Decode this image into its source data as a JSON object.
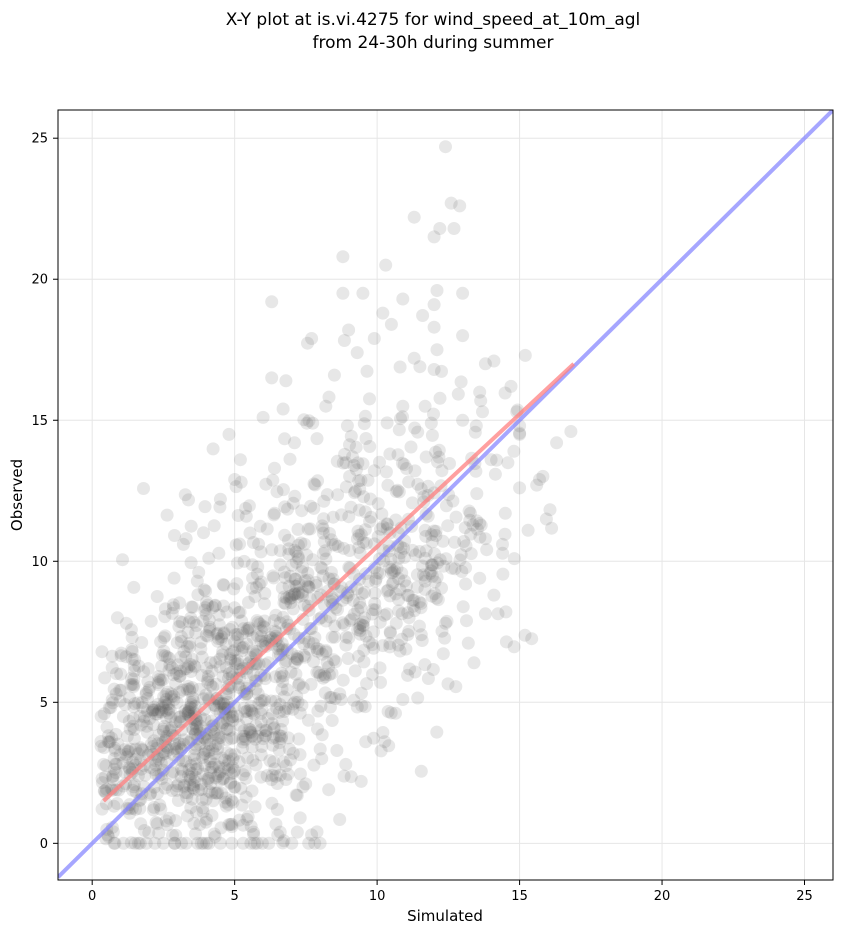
{
  "chart_data": {
    "type": "scatter",
    "title_lines": [
      "X-Y plot at is.vi.4275 for wind_speed_at_10m_agl",
      "from 24-30h during summer"
    ],
    "xlabel": "Simulated",
    "ylabel": "Observed",
    "xlim": [
      -1.2,
      26.0
    ],
    "ylim": [
      -1.3,
      26.0
    ],
    "xticks": [
      0,
      5,
      10,
      15,
      20,
      25
    ],
    "yticks": [
      0,
      5,
      10,
      15,
      20,
      25
    ],
    "grid": true,
    "colors": {
      "points": "#555555",
      "fit_line": "#ff8080",
      "identity_line": "#8080ff"
    },
    "fit_line": {
      "x": [
        0.4,
        16.9
      ],
      "y": [
        1.5,
        17.0
      ]
    },
    "identity_line": {
      "x": [
        -1.2,
        26.0
      ],
      "y": [
        -1.2,
        26.0
      ]
    },
    "outliers": [
      {
        "x": 12.4,
        "y": 24.7
      },
      {
        "x": 12.6,
        "y": 22.7
      },
      {
        "x": 12.9,
        "y": 22.6
      },
      {
        "x": 11.3,
        "y": 22.2
      },
      {
        "x": 12.2,
        "y": 21.8
      },
      {
        "x": 12.7,
        "y": 21.8
      },
      {
        "x": 12.0,
        "y": 21.5
      },
      {
        "x": 8.8,
        "y": 20.8
      },
      {
        "x": 10.3,
        "y": 20.5
      },
      {
        "x": 6.3,
        "y": 19.2
      },
      {
        "x": 8.8,
        "y": 19.5
      },
      {
        "x": 9.5,
        "y": 19.5
      },
      {
        "x": 10.9,
        "y": 19.3
      },
      {
        "x": 12.1,
        "y": 19.6
      },
      {
        "x": 13.0,
        "y": 19.5
      },
      {
        "x": 12.0,
        "y": 19.1
      },
      {
        "x": 10.2,
        "y": 18.8
      },
      {
        "x": 10.5,
        "y": 18.4
      },
      {
        "x": 9.0,
        "y": 18.2
      },
      {
        "x": 12.0,
        "y": 18.3
      },
      {
        "x": 13.0,
        "y": 18.0
      },
      {
        "x": 7.7,
        "y": 17.9
      },
      {
        "x": 9.9,
        "y": 17.9
      },
      {
        "x": 12.1,
        "y": 17.5
      },
      {
        "x": 9.3,
        "y": 17.4
      },
      {
        "x": 11.3,
        "y": 17.2
      },
      {
        "x": 13.8,
        "y": 17.0
      },
      {
        "x": 14.1,
        "y": 17.1
      },
      {
        "x": 15.2,
        "y": 17.3
      },
      {
        "x": 6.3,
        "y": 16.5
      },
      {
        "x": 6.8,
        "y": 16.4
      },
      {
        "x": 8.5,
        "y": 16.6
      },
      {
        "x": 11.5,
        "y": 16.9
      },
      {
        "x": 12.0,
        "y": 16.8
      },
      {
        "x": 13.6,
        "y": 16.0
      },
      {
        "x": 14.7,
        "y": 16.2
      },
      {
        "x": 6.0,
        "y": 15.1
      },
      {
        "x": 6.7,
        "y": 15.4
      },
      {
        "x": 8.2,
        "y": 15.5
      },
      {
        "x": 10.9,
        "y": 15.5
      },
      {
        "x": 13.7,
        "y": 15.3
      },
      {
        "x": 14.9,
        "y": 15.3
      },
      {
        "x": 4.8,
        "y": 14.5
      },
      {
        "x": 11.9,
        "y": 14.9
      },
      {
        "x": 13.0,
        "y": 15.0
      },
      {
        "x": 15.0,
        "y": 14.8
      },
      {
        "x": 16.3,
        "y": 14.2
      },
      {
        "x": 16.8,
        "y": 14.6
      },
      {
        "x": 5.2,
        "y": 13.6
      },
      {
        "x": 7.1,
        "y": 14.2
      },
      {
        "x": 14.8,
        "y": 13.9
      },
      {
        "x": 15.0,
        "y": 14.5
      },
      {
        "x": 6.4,
        "y": 13.3
      },
      {
        "x": 14.0,
        "y": 13.6
      },
      {
        "x": 15.7,
        "y": 12.9
      },
      {
        "x": 5.0,
        "y": 12.9
      },
      {
        "x": 13.5,
        "y": 12.4
      },
      {
        "x": 15.0,
        "y": 12.6
      },
      {
        "x": 15.6,
        "y": 12.7
      },
      {
        "x": 4.5,
        "y": 12.2
      },
      {
        "x": 14.5,
        "y": 11.7
      },
      {
        "x": 15.3,
        "y": 11.1
      },
      {
        "x": 3.2,
        "y": 10.6
      },
      {
        "x": 13.8,
        "y": 10.8
      },
      {
        "x": 14.4,
        "y": 10.6
      },
      {
        "x": 14.1,
        "y": 8.8
      },
      {
        "x": 13.6,
        "y": 9.4
      },
      {
        "x": 12.4,
        "y": 7.8
      },
      {
        "x": 13.2,
        "y": 7.1
      },
      {
        "x": 13.4,
        "y": 6.4
      },
      {
        "x": 10.9,
        "y": 5.1
      },
      {
        "x": 9.6,
        "y": 3.6
      },
      {
        "x": 8.9,
        "y": 2.8
      },
      {
        "x": 8.3,
        "y": 1.9
      },
      {
        "x": 7.2,
        "y": 1.7
      },
      {
        "x": 7.4,
        "y": 2.0
      },
      {
        "x": 6.6,
        "y": 0.4
      },
      {
        "x": 7.2,
        "y": 0.4
      },
      {
        "x": 7.3,
        "y": 0.9
      },
      {
        "x": 7.7,
        "y": 0.3
      },
      {
        "x": 7.6,
        "y": 0.0
      },
      {
        "x": 8.0,
        "y": 0.0
      },
      {
        "x": 6.2,
        "y": 0.0
      },
      {
        "x": 6.5,
        "y": 1.2
      },
      {
        "x": 0.8,
        "y": 0.0
      },
      {
        "x": 1.1,
        "y": 0.0
      },
      {
        "x": 1.5,
        "y": 0.0
      },
      {
        "x": 1.9,
        "y": 0.0
      },
      {
        "x": 2.2,
        "y": 0.0
      },
      {
        "x": 2.5,
        "y": 0.0
      },
      {
        "x": 2.9,
        "y": 0.0
      },
      {
        "x": 3.3,
        "y": 0.0
      },
      {
        "x": 3.7,
        "y": 0.0
      },
      {
        "x": 4.1,
        "y": 0.0
      },
      {
        "x": 4.5,
        "y": 0.0
      },
      {
        "x": 4.9,
        "y": 0.0
      },
      {
        "x": 5.3,
        "y": 0.0
      },
      {
        "x": 5.7,
        "y": 0.0
      },
      {
        "x": 0.5,
        "y": 1.4
      },
      {
        "x": 0.4,
        "y": 2.8
      },
      {
        "x": 1.2,
        "y": 7.8
      },
      {
        "x": 1.4,
        "y": 7.3
      },
      {
        "x": 1.0,
        "y": 6.0
      },
      {
        "x": 0.6,
        "y": 4.8
      }
    ],
    "clusters": [
      {
        "cx": 2.6,
        "cy": 3.2,
        "sx": 1.5,
        "sy": 1.6,
        "n": 330
      },
      {
        "cx": 4.6,
        "cy": 5.5,
        "sx": 1.8,
        "sy": 2.3,
        "n": 420
      },
      {
        "cx": 7.3,
        "cy": 8.2,
        "sx": 2.1,
        "sy": 2.6,
        "n": 330
      },
      {
        "cx": 10.0,
        "cy": 10.4,
        "sx": 2.0,
        "sy": 2.7,
        "n": 220
      },
      {
        "cx": 12.2,
        "cy": 11.0,
        "sx": 1.5,
        "sy": 2.6,
        "n": 90
      },
      {
        "cx": 5.2,
        "cy": 2.4,
        "sx": 1.1,
        "sy": 1.3,
        "n": 70
      }
    ]
  }
}
